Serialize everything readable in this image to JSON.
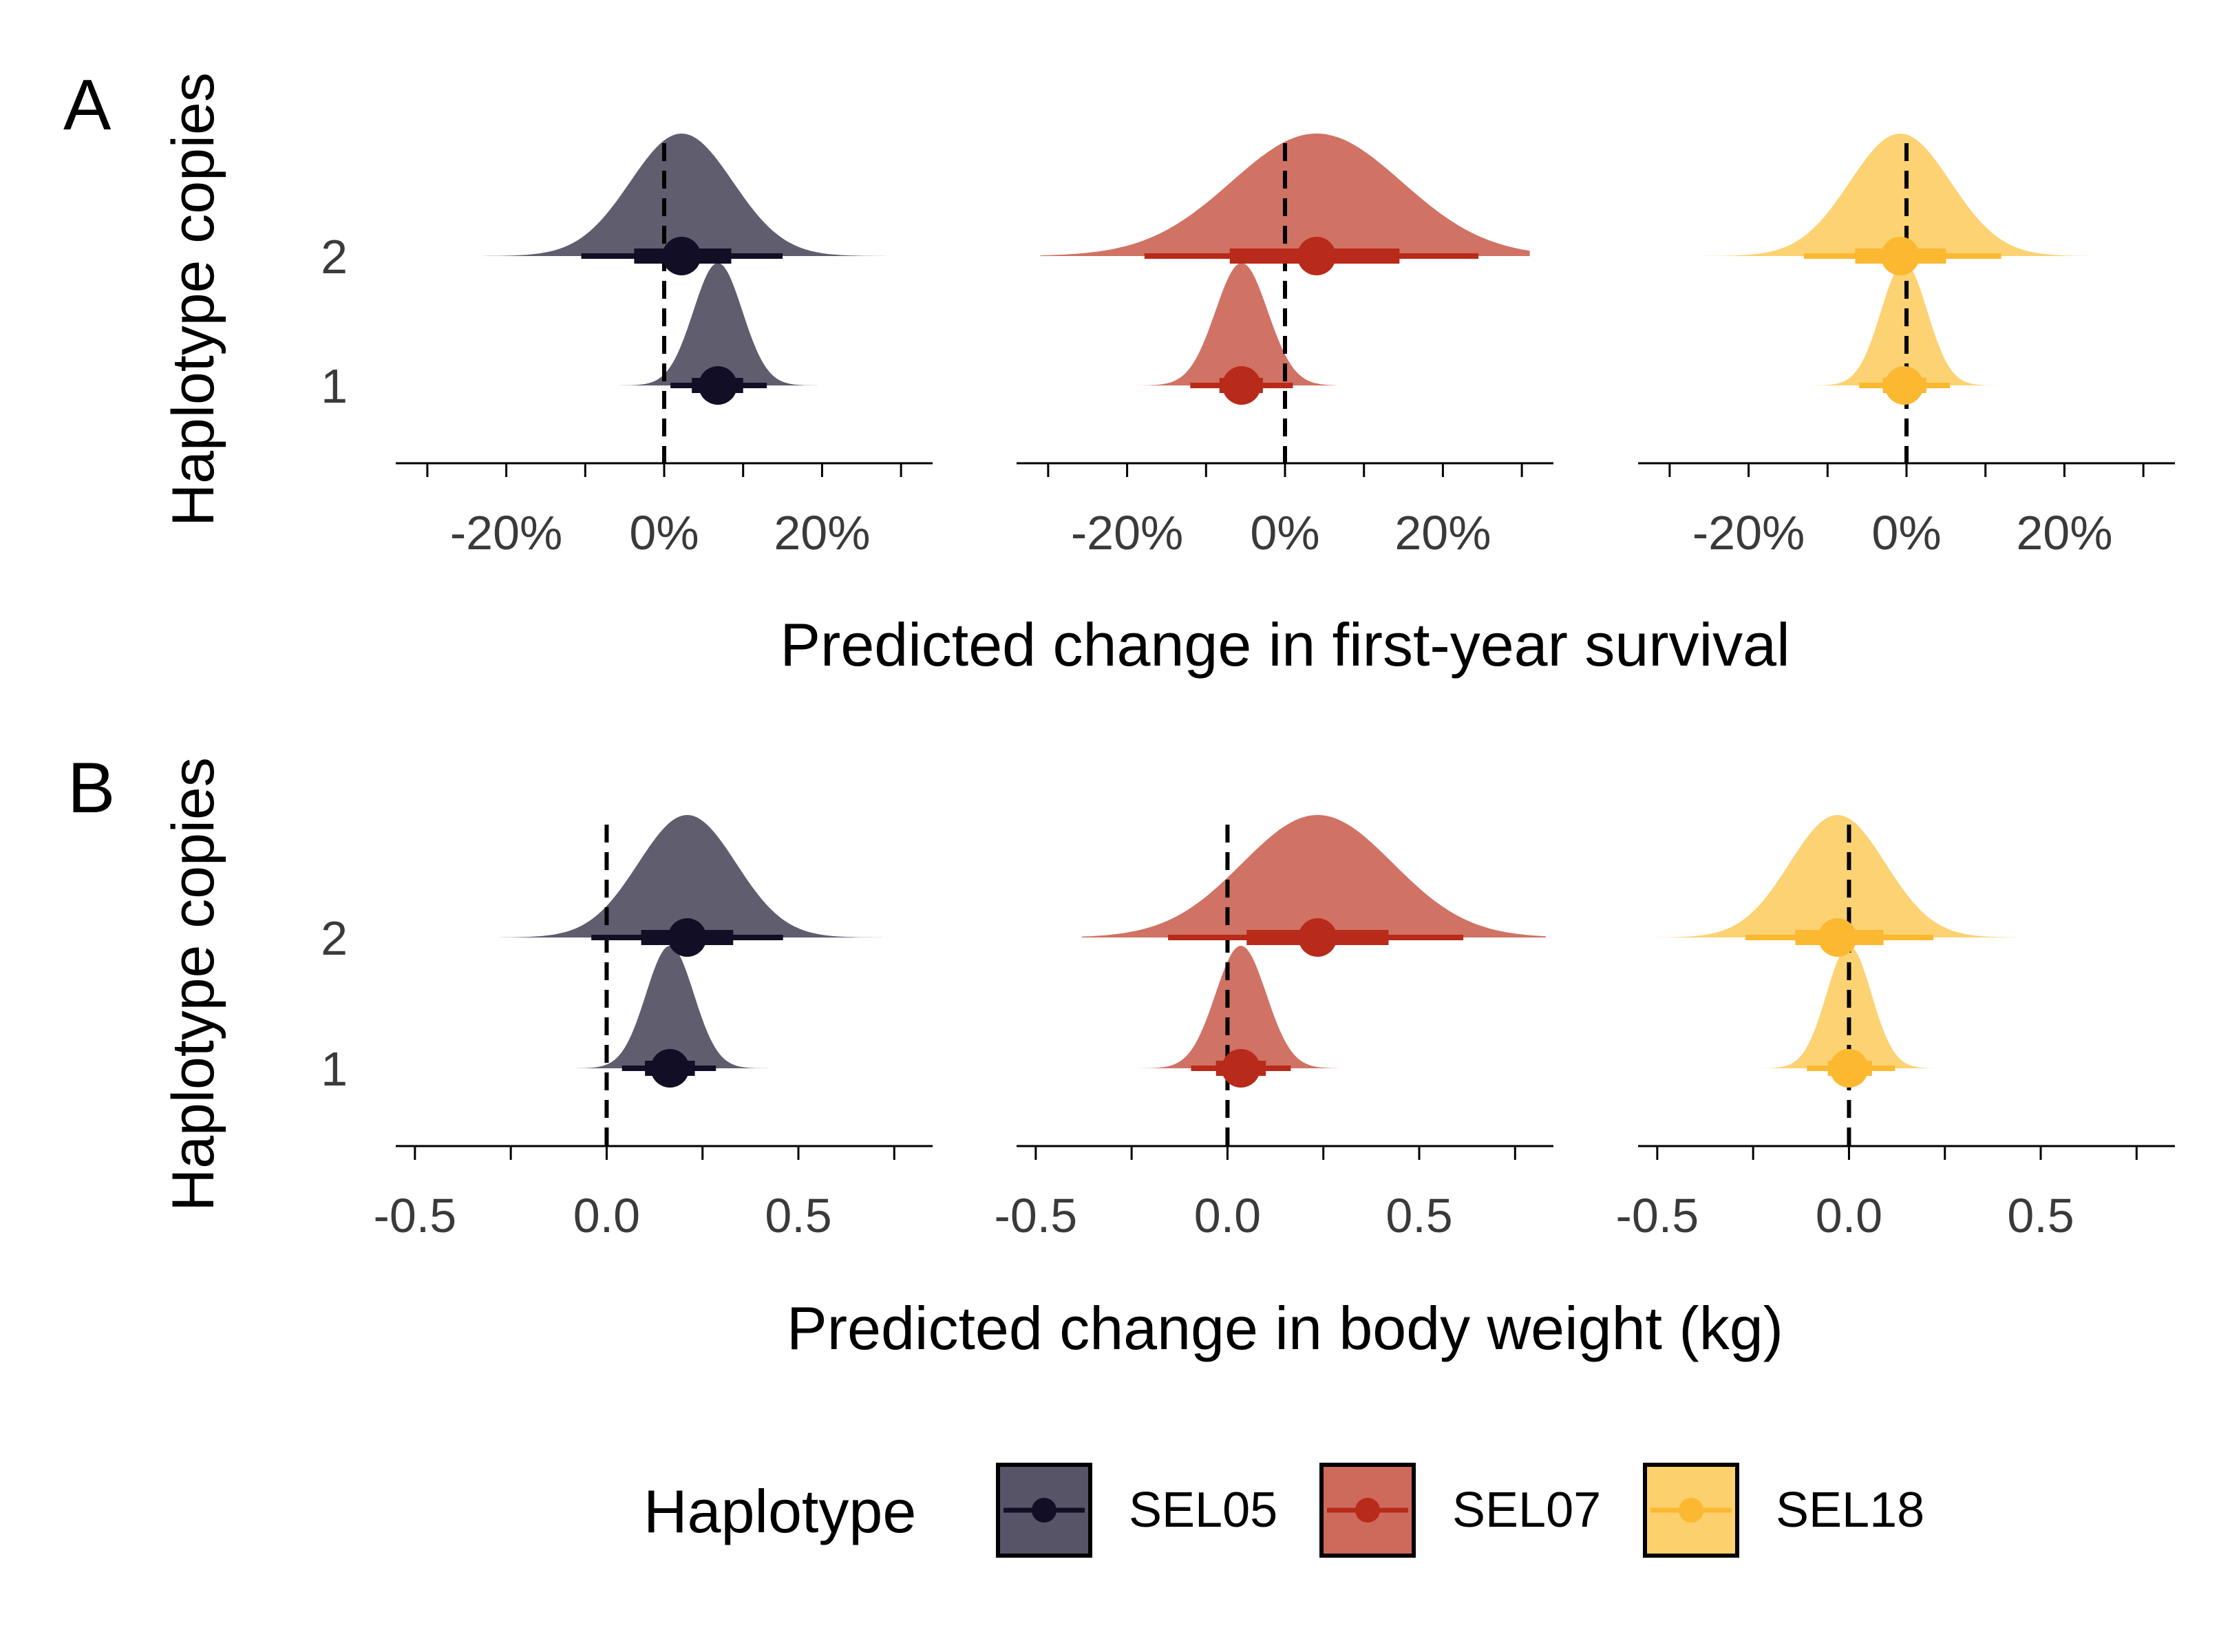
{
  "chart_data": [
    {
      "panel_label": "A",
      "type": "halfeye",
      "xlabel": "Predicted change in first-year survival",
      "ylabel": "Haplotype copies",
      "y_categories": [
        "1",
        "2"
      ],
      "xlim": [
        -0.34,
        0.34
      ],
      "x_ticks": [
        -0.3,
        -0.2,
        -0.1,
        0.0,
        0.1,
        0.2,
        0.3
      ],
      "x_tick_labels": [
        "-20%",
        "0%",
        "20%"
      ],
      "x_tick_label_values": [
        -0.2,
        0.0,
        0.2
      ],
      "reference_line": 0,
      "facets": [
        {
          "haplotype": "SEL05",
          "rows": [
            {
              "copies": "2",
              "median": 0.022,
              "q66": [
                -0.038,
                0.085
              ],
              "q95": [
                -0.105,
                0.15
              ],
              "density_range": [
                -0.23,
                0.28
              ]
            },
            {
              "copies": "1",
              "median": 0.068,
              "q66": [
                0.035,
                0.1
              ],
              "q95": [
                0.008,
                0.13
              ],
              "density_range": [
                -0.06,
                0.195
              ]
            }
          ]
        },
        {
          "haplotype": "SEL07",
          "rows": [
            {
              "copies": "2",
              "median": 0.04,
              "q66": [
                -0.07,
                0.145
              ],
              "q95": [
                -0.178,
                0.245
              ],
              "density_range": [
                -0.31,
                0.31
              ]
            },
            {
              "copies": "1",
              "median": -0.055,
              "q66": [
                -0.083,
                -0.028
              ],
              "q95": [
                -0.12,
                0.01
              ],
              "density_range": [
                -0.195,
                0.065
              ]
            }
          ]
        },
        {
          "haplotype": "SEL18",
          "rows": [
            {
              "copies": "2",
              "median": -0.008,
              "q66": [
                -0.065,
                0.05
              ],
              "q95": [
                -0.13,
                0.12
              ],
              "density_range": [
                -0.26,
                0.23
              ]
            },
            {
              "copies": "1",
              "median": -0.003,
              "q66": [
                -0.03,
                0.025
              ],
              "q95": [
                -0.06,
                0.055
              ],
              "density_range": [
                -0.14,
                0.13
              ]
            }
          ]
        }
      ]
    },
    {
      "panel_label": "B",
      "type": "halfeye",
      "xlabel": "Predicted change in body weight (kg)",
      "ylabel": "Haplotype copies",
      "y_categories": [
        "1",
        "2"
      ],
      "xlim": [
        -0.55,
        0.85
      ],
      "x_ticks": [
        -0.5,
        -0.25,
        0.0,
        0.25,
        0.5,
        0.75
      ],
      "x_tick_labels": [
        "-0.5",
        "0.0",
        "0.5"
      ],
      "x_tick_label_values": [
        -0.5,
        0.0,
        0.5
      ],
      "reference_line": 0,
      "facets": [
        {
          "haplotype": "SEL05",
          "rows": [
            {
              "copies": "2",
              "median": 0.21,
              "q66": [
                0.09,
                0.33
              ],
              "q95": [
                -0.04,
                0.46
              ],
              "density_range": [
                -0.28,
                0.72
              ]
            },
            {
              "copies": "1",
              "median": 0.165,
              "q66": [
                0.1,
                0.23
              ],
              "q95": [
                0.04,
                0.285
              ],
              "density_range": [
                -0.08,
                0.43
              ]
            }
          ]
        },
        {
          "haplotype": "SEL07",
          "rows": [
            {
              "copies": "2",
              "median": 0.235,
              "q66": [
                0.05,
                0.42
              ],
              "q95": [
                -0.155,
                0.615
              ],
              "density_range": [
                -0.38,
                0.83
              ]
            },
            {
              "copies": "1",
              "median": 0.035,
              "q66": [
                -0.03,
                0.1
              ],
              "q95": [
                -0.095,
                0.165
              ],
              "density_range": [
                -0.23,
                0.29
              ]
            }
          ]
        },
        {
          "haplotype": "SEL18",
          "rows": [
            {
              "copies": "2",
              "median": -0.03,
              "q66": [
                -0.14,
                0.09
              ],
              "q95": [
                -0.27,
                0.22
              ],
              "density_range": [
                -0.5,
                0.44
              ]
            },
            {
              "copies": "1",
              "median": 0.0,
              "q66": [
                -0.055,
                0.06
              ],
              "q95": [
                -0.11,
                0.12
              ],
              "density_range": [
                -0.24,
                0.25
              ]
            }
          ]
        }
      ]
    }
  ],
  "legend": {
    "title": "Haplotype",
    "position": "bottom",
    "items": [
      {
        "label": "SEL05",
        "fill": "#575467",
        "line": "#110e25"
      },
      {
        "label": "SEL07",
        "fill": "#cd6a5c",
        "line": "#b82a19"
      },
      {
        "label": "SEL18",
        "fill": "#fcd06c",
        "line": "#fbb830"
      }
    ]
  },
  "colors": {
    "SEL05": {
      "fill": "#575467",
      "line": "#110e25"
    },
    "SEL07": {
      "fill": "#cd6a5c",
      "line": "#b82a19"
    },
    "SEL18": {
      "fill": "#fcd06c",
      "line": "#fbb830"
    }
  }
}
